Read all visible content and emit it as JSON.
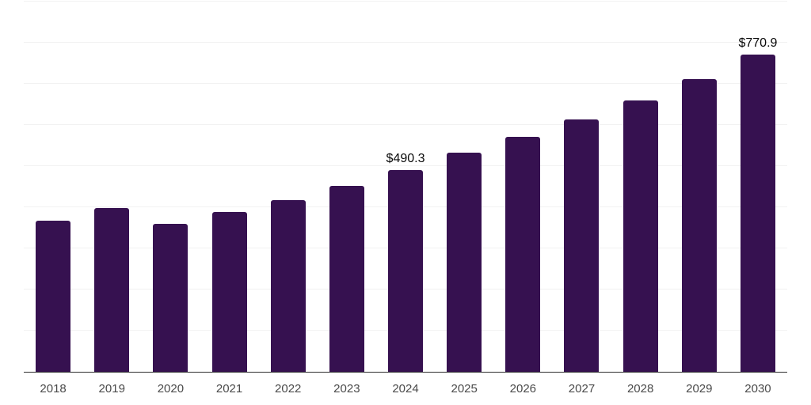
{
  "chart": {
    "background_color": "#ffffff",
    "bar_color": "#361150",
    "gridline_color": "#f2f2f2",
    "axis_line_color": "#2e2e2e",
    "tick_label_color": "#4a4a4a",
    "data_label_color": "#0a0a0a"
  },
  "chart_data": {
    "type": "bar",
    "title": "",
    "xlabel": "",
    "ylabel": "",
    "categories": [
      "2018",
      "2019",
      "2020",
      "2021",
      "2022",
      "2023",
      "2024",
      "2025",
      "2026",
      "2027",
      "2028",
      "2029",
      "2030"
    ],
    "values": [
      368,
      399,
      360,
      388,
      417,
      452,
      490.3,
      532,
      572,
      614,
      660,
      711,
      770.9
    ],
    "labeled_points": [
      {
        "category": "2024",
        "label": "$490.3"
      },
      {
        "category": "2030",
        "label": "$770.9"
      }
    ],
    "ylim": [
      0,
      900
    ],
    "gridline_step": 100,
    "grid": "horizontal",
    "y_axis_tick_labels_visible": false,
    "legend_position": "none"
  }
}
